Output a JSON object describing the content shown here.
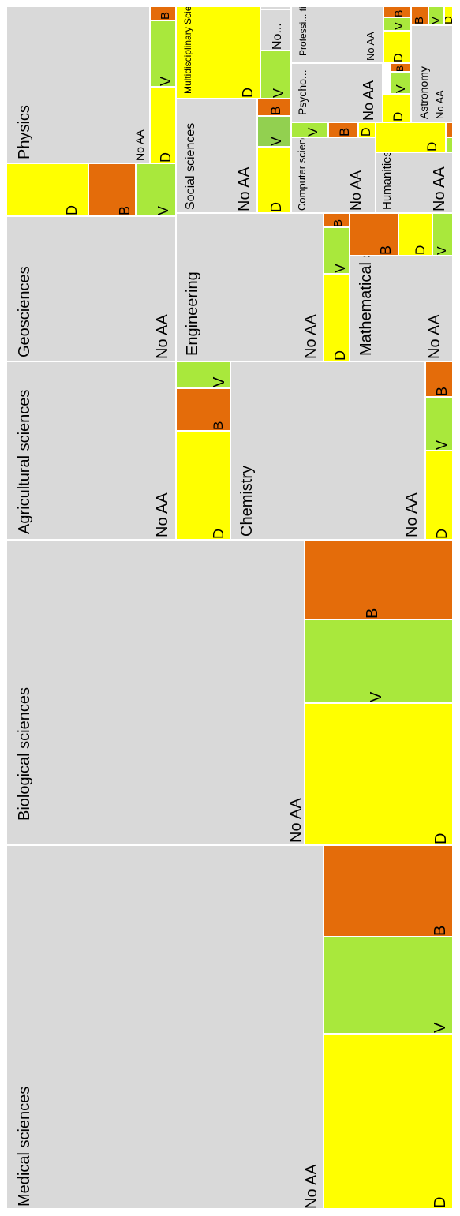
{
  "chart_data": {
    "type": "treemap",
    "colors": {
      "No AA": "#d9d9d9",
      "D": "#ffff00",
      "V": "#a9e83c",
      "V_alt": "#92d050",
      "B": "#e46c0a"
    },
    "fields": [
      {
        "name": "Medical sciences",
        "no_aa_label": "No AA",
        "segments": [
          {
            "label": "No AA",
            "value": 175000
          },
          {
            "label": "D",
            "value": 36000
          },
          {
            "label": "V",
            "value": 19000
          },
          {
            "label": "B",
            "value": 14000
          }
        ]
      },
      {
        "name": "Biological sciences",
        "no_aa_label": "No AA",
        "segments": [
          {
            "label": "No AA",
            "value": 128000
          },
          {
            "label": "D",
            "value": 26000
          },
          {
            "label": "V",
            "value": 14000
          },
          {
            "label": "B",
            "value": 13000
          }
        ]
      },
      {
        "name": "Agricultural sciences",
        "no_aa_label": "No AA",
        "segments": [
          {
            "label": "No AA",
            "value": 48000
          },
          {
            "label": "D",
            "value": 7000
          },
          {
            "label": "B",
            "value": 2500
          },
          {
            "label": "V",
            "value": 1700
          }
        ]
      },
      {
        "name": "Chemistry",
        "no_aa_label": "No AA",
        "segments": [
          {
            "label": "No AA",
            "value": 51000
          },
          {
            "label": "D",
            "value": 3800
          },
          {
            "label": "V",
            "value": 2300
          },
          {
            "label": "B",
            "value": 1600
          }
        ]
      },
      {
        "name": "Geosciences",
        "no_aa_label": "No AA",
        "segments": [
          {
            "label": "No AA",
            "value": 39000
          }
        ]
      },
      {
        "name": "Engineering",
        "no_aa_label": "No AA",
        "segments": [
          {
            "label": "No AA",
            "value": 24000
          },
          {
            "label": "D",
            "value": 4000
          },
          {
            "label": "V",
            "value": 2300
          },
          {
            "label": "B",
            "value": 700
          }
        ]
      },
      {
        "name": "Mathematical sciences",
        "no_aa_label": "No AA",
        "segments": [
          {
            "label": "No AA",
            "value": 9000
          },
          {
            "label": "B",
            "value": 1900
          },
          {
            "label": "D",
            "value": 1300
          },
          {
            "label": "V",
            "value": 1000
          }
        ]
      },
      {
        "name": "Physics",
        "no_aa_label": "No AA",
        "segments": [
          {
            "label": "No AA",
            "value": 17000
          },
          {
            "label": "D",
            "value": 6700
          },
          {
            "label": "B",
            "value": 3800
          },
          {
            "label": "V",
            "value": 3300
          },
          {
            "label": "D",
            "value": 1600
          },
          {
            "label": "V",
            "value": 1700
          },
          {
            "label": "B",
            "value": 400
          }
        ]
      },
      {
        "name": "Social sciences",
        "no_aa_label": "No AA",
        "segments": [
          {
            "label": "No AA",
            "value": 10600
          },
          {
            "label": "D",
            "value": 2200
          },
          {
            "label": "V",
            "value": 1000
          },
          {
            "label": "B",
            "value": 500
          }
        ]
      },
      {
        "name": "Multidisciplinary Sciences",
        "no_aa_label": "",
        "segments": [
          {
            "label": "D",
            "value": 5700
          },
          {
            "label": "V",
            "value": 1700
          },
          {
            "label": "No...",
            "value": 1200
          },
          {
            "label": "",
            "value": 100
          }
        ]
      },
      {
        "name": "Computer sciences",
        "no_aa_label": "No AA",
        "segments": [
          {
            "label": "No AA",
            "value": 4500
          },
          {
            "label": "V",
            "value": 600
          },
          {
            "label": "B",
            "value": 500
          },
          {
            "label": "D",
            "value": 300
          }
        ]
      },
      {
        "name": "Psycho...",
        "no_aa_label": "No AA",
        "segments": [
          {
            "label": "No AA",
            "value": 3200
          },
          {
            "label": "D",
            "value": 400
          },
          {
            "label": "V",
            "value": 300
          },
          {
            "label": "B",
            "value": 150
          }
        ]
      },
      {
        "name": "Professi... fields",
        "no_aa_label": "No AA",
        "segments": [
          {
            "label": "No AA",
            "value": 3500
          }
        ]
      },
      {
        "name": "Humanities",
        "no_aa_label": "No AA",
        "segments": [
          {
            "label": "No AA",
            "value": 5000
          },
          {
            "label": "D",
            "value": 1700
          },
          {
            "label": "V",
            "value": 150
          },
          {
            "label": "B",
            "value": 150
          }
        ]
      },
      {
        "name": "Astronomy",
        "no_aa_label": "No AA",
        "segments": [
          {
            "label": "No AA",
            "value": 2800
          },
          {
            "label": "B",
            "value": 400
          },
          {
            "label": "V",
            "value": 400
          },
          {
            "label": "D",
            "value": 200
          }
        ]
      },
      {
        "name": "",
        "no_aa_label": "",
        "segments": [
          {
            "label": "D",
            "value": 900
          },
          {
            "label": "V",
            "value": 350
          },
          {
            "label": "B",
            "value": 250
          }
        ]
      }
    ]
  }
}
